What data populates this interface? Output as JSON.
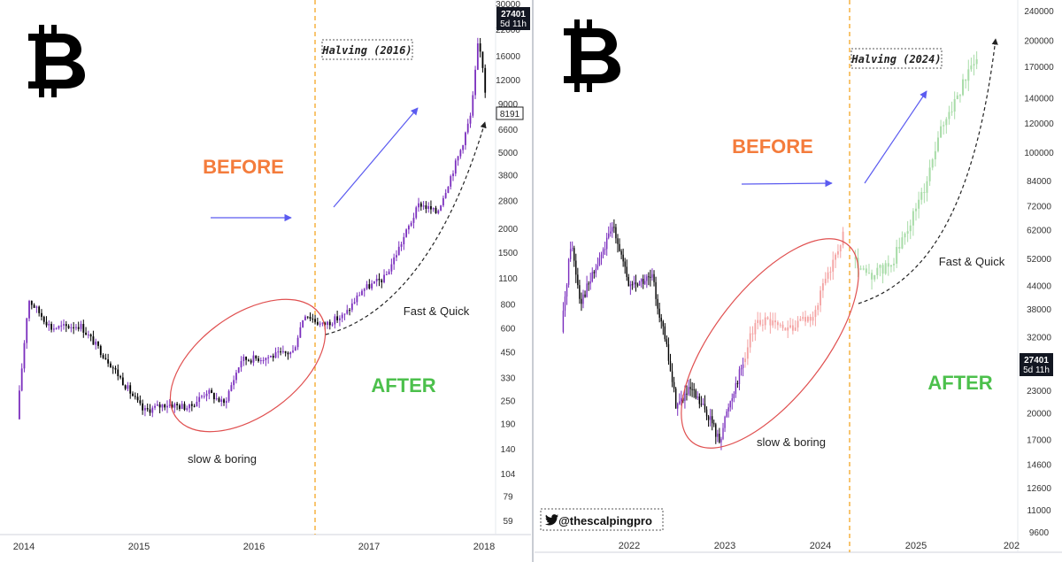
{
  "chart_data": [
    {
      "type": "candlestick",
      "scale": "log",
      "y_ticks": [
        59,
        79,
        104,
        140,
        190,
        250,
        330,
        450,
        600,
        800,
        1100,
        1500,
        2000,
        2800,
        3800,
        5000,
        6600,
        9000,
        12000,
        16000,
        22000,
        30000
      ],
      "x_ticks": [
        "2014",
        "2015",
        "2016",
        "2017",
        "2018"
      ],
      "price_badge": {
        "value": "27401",
        "countdown": "5d 11h"
      },
      "level_badge": "8191",
      "halving_label": "Halving (2016)",
      "annotations": {
        "before": "BEFORE",
        "after": "AFTER",
        "slow": "slow & boring",
        "fast": "Fast & Quick"
      },
      "series_anchors": [
        {
          "date": "2013.95",
          "value": 200
        },
        {
          "date": "2014.05",
          "value": 850
        },
        {
          "date": "2014.25",
          "value": 600
        },
        {
          "date": "2014.5",
          "value": 620
        },
        {
          "date": "2014.75",
          "value": 400
        },
        {
          "date": "2015.05",
          "value": 220
        },
        {
          "date": "2015.25",
          "value": 240
        },
        {
          "date": "2015.45",
          "value": 230
        },
        {
          "date": "2015.6",
          "value": 280
        },
        {
          "date": "2015.75",
          "value": 240
        },
        {
          "date": "2015.9",
          "value": 410
        },
        {
          "date": "2016.1",
          "value": 420
        },
        {
          "date": "2016.35",
          "value": 450
        },
        {
          "date": "2016.45",
          "value": 720
        },
        {
          "date": "2016.6",
          "value": 620
        },
        {
          "date": "2016.8",
          "value": 700
        },
        {
          "date": "2016.95",
          "value": 950
        },
        {
          "date": "2017.15",
          "value": 1100
        },
        {
          "date": "2017.35",
          "value": 2000
        },
        {
          "date": "2017.45",
          "value": 2700
        },
        {
          "date": "2017.6",
          "value": 2400
        },
        {
          "date": "2017.8",
          "value": 5000
        },
        {
          "date": "2017.9",
          "value": 8000
        },
        {
          "date": "2017.96",
          "value": 19000
        },
        {
          "date": "2018.0",
          "value": 14000
        },
        {
          "date": "2018.02",
          "value": 10500
        }
      ]
    },
    {
      "type": "candlestick",
      "scale": "log",
      "y_ticks": [
        9600,
        11000,
        12600,
        14600,
        17000,
        20000,
        23000,
        27401,
        32000,
        38000,
        44000,
        52000,
        62000,
        72000,
        84000,
        100000,
        120000,
        140000,
        170000,
        200000,
        240000
      ],
      "x_ticks": [
        "2022",
        "2023",
        "2024",
        "2025",
        "202"
      ],
      "price_badge": {
        "value": "27401",
        "countdown": "5d 11h"
      },
      "halving_label": "Halving (2024)",
      "watermark": "@thescalpingpro",
      "annotations": {
        "before": "BEFORE",
        "after": "AFTER",
        "slow": "slow & boring",
        "fast": "Fast & Quick"
      },
      "series_anchors": [
        {
          "date": "2021.3",
          "value": 33000
        },
        {
          "date": "2021.4",
          "value": 58000
        },
        {
          "date": "2021.5",
          "value": 40000
        },
        {
          "date": "2021.65",
          "value": 48000
        },
        {
          "date": "2021.85",
          "value": 64000
        },
        {
          "date": "2022.0",
          "value": 44000
        },
        {
          "date": "2022.25",
          "value": 46000
        },
        {
          "date": "2022.4",
          "value": 30000
        },
        {
          "date": "2022.5",
          "value": 21000
        },
        {
          "date": "2022.65",
          "value": 23000
        },
        {
          "date": "2022.85",
          "value": 19500
        },
        {
          "date": "2022.95",
          "value": 16800
        },
        {
          "date": "2023.05",
          "value": 21000
        },
        {
          "date": "2023.2",
          "value": 27401
        }
      ],
      "projection_before_anchors": [
        {
          "date": "2023.2",
          "value": 27401
        },
        {
          "date": "2023.35",
          "value": 36000
        },
        {
          "date": "2023.55",
          "value": 34000
        },
        {
          "date": "2023.75",
          "value": 34000
        },
        {
          "date": "2023.95",
          "value": 37000
        },
        {
          "date": "2024.1",
          "value": 48000
        },
        {
          "date": "2024.25",
          "value": 60000
        }
      ],
      "projection_after_anchors": [
        {
          "date": "2024.35",
          "value": 52000
        },
        {
          "date": "2024.5",
          "value": 46000
        },
        {
          "date": "2024.75",
          "value": 50000
        },
        {
          "date": "2024.9",
          "value": 60000
        },
        {
          "date": "2025.1",
          "value": 80000
        },
        {
          "date": "2025.3",
          "value": 120000
        },
        {
          "date": "2025.5",
          "value": 150000
        },
        {
          "date": "2025.65",
          "value": 185000
        }
      ]
    }
  ],
  "colors": {
    "bull": "#7b2fbe",
    "bear": "#000000",
    "proj_before": "#f4a3a3",
    "proj_after": "#a8dca8",
    "before_text": "#f47c3c",
    "after_text": "#4cc04c",
    "halving_line": "#f5a623",
    "arrow": "#5b5bf0",
    "ellipse": "#e05050",
    "badge_bg": "#131722"
  },
  "icons": {
    "logo": "bitcoin-logo-icon",
    "twitter": "twitter-bird-icon"
  }
}
